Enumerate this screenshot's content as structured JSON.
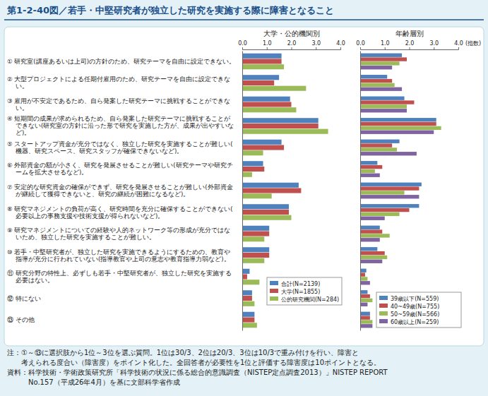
{
  "title": "第1-2-40図／若手・中堅研究者が独立した研究を実施する際に障害となること",
  "notes": [
    "注：①～⑬に選択肢から1位～3位を選ぶ質問。1位は30/3、2位は20/3、3位は10/3で重み付けを行い、障害と",
    "　　考えられる度合い（障害度）をポイント化した。全回答者が必要性を1位と評価する障害度は10ポイントとなる。",
    "資料：科学技術・学術政策研究所「科学技術の状況に係る総合的意識調査（NISTEP定点調査2013）」NISTEP REPORT",
    "　　　No.157（平成26年4月）を基に文部科学省作成"
  ],
  "chart_data": [
    {
      "type": "bar",
      "orientation": "horizontal",
      "title": "大学・公的機関別",
      "grid": false,
      "legend": "lower right",
      "categories": [
        "① 研究室(講座あるいは上司)の方針のため、研究テーマを自由に設定できない。",
        "② 大型プロジェクトによる任期付雇用のため、研究テーマを自由に設定できない。",
        "③ 雇用が不安定であるため、自ら発案した研究テーマに挑戦することができない。",
        "④ 短期間の成果が求められるため、自ら発案した研究テーマに挑戦することができない(研究室の方針に沿った形で研究を実施した方が、成果が出やすいなど)。",
        "⑤ スタートアップ資金が充分ではなく、独立した研究を実施することが難しい(機器、研究スペース、研究スタッフが確保できないなど)。",
        "⑥ 外部資金の額が小さく、研究を発展させることが難しい(研究テーマや研究チームを拡大させるなど)。",
        "⑦ 安定的な研究資金の確保ができず、研究を発展させることが難しい(外部資金が継続して獲得できないと、研究の継続が困難になるなど)。",
        "⑧ 研究マネジメントの負荷が高く、研究時間を充分に確保することができない(必要以上の事務支援や技術支援が得られないなど)。",
        "⑨ 研究マネジメントについての経験や人的ネットワーク等の形成が充分ではないため、独立した研究を実施することが難しい。",
        "⑩ 若手・中堅研究者が、独立した研究を実施できるようにするための、教育や指導が充分に行われていない(指導教官や上司の意志や教育指導力弱など)。",
        "⑪ 研究分野の特性上、必ずしも若手・中堅研究者が、独立した研究を実施する必要はない。",
        "⑫ 特にない",
        "⑬ その他"
      ],
      "xlim": [
        0,
        4
      ],
      "xticks": [
        {
          "value": 0,
          "label": "0.0"
        },
        {
          "value": 1,
          "label": "1.0"
        },
        {
          "value": 2,
          "label": "2.0"
        },
        {
          "value": 3,
          "label": "3.0"
        },
        {
          "value": 4,
          "label": "4.0"
        }
      ],
      "series": [
        {
          "name": "合計(N=2139)",
          "color": "#4f81bd",
          "values": [
            1.6,
            1.5,
            1.95,
            3.1,
            1.6,
            0.85,
            2.3,
            1.9,
            1.1,
            1.1,
            0.3,
            0.4,
            0.5
          ]
        },
        {
          "name": "大学(N=1855)",
          "color": "#c0504d",
          "values": [
            1.6,
            1.3,
            2.0,
            3.1,
            1.7,
            0.9,
            2.4,
            1.9,
            1.1,
            1.1,
            0.2,
            0.4,
            0.5
          ]
        },
        {
          "name": "公的研究機関(N=284)",
          "color": "#9bbb59",
          "values": [
            1.7,
            2.6,
            2.2,
            3.5,
            0.85,
            0.4,
            1.2,
            2.0,
            0.9,
            0.9,
            0.7,
            0.5,
            0.6
          ]
        }
      ]
    },
    {
      "type": "bar",
      "orientation": "horizontal",
      "title": "年齢層別",
      "x_label": "(指数)",
      "grid": false,
      "legend": "lower right",
      "categories": [
        null,
        null,
        null,
        null,
        null,
        null,
        null,
        null,
        null,
        null,
        null,
        null,
        null
      ],
      "xlim": [
        0,
        4
      ],
      "xticks": [
        {
          "value": 0,
          "label": "0.0"
        },
        {
          "value": 1,
          "label": "1.0"
        },
        {
          "value": 2,
          "label": "2.0"
        },
        {
          "value": 3,
          "label": "3.0"
        },
        {
          "value": 4,
          "label": "4.0"
        }
      ],
      "series": [
        {
          "name": "39歳以下(N=559)",
          "color": "#4f81bd",
          "values": [
            1.7,
            1.1,
            1.8,
            3.1,
            1.6,
            0.7,
            2.5,
            2.4,
            0.8,
            0.7,
            0.25,
            0.3,
            0.4
          ]
        },
        {
          "name": "40~49歳(N=755)",
          "color": "#c0504d",
          "values": [
            1.9,
            1.3,
            2.2,
            3.1,
            1.3,
            0.9,
            2.4,
            2.0,
            0.9,
            1.0,
            0.2,
            0.4,
            0.4
          ]
        },
        {
          "name": "50~59歳(N=566)",
          "color": "#9bbb59",
          "values": [
            1.6,
            1.4,
            1.9,
            3.3,
            1.5,
            0.6,
            1.8,
            1.6,
            1.2,
            1.1,
            0.3,
            0.5,
            0.5
          ]
        },
        {
          "name": "60歳以上(N=259)",
          "color": "#8064a2",
          "values": [
            1.3,
            1.7,
            1.9,
            3.0,
            2.3,
            0.8,
            2.4,
            1.0,
            0.8,
            0.9,
            0.4,
            0.3,
            0.5
          ]
        }
      ]
    }
  ]
}
